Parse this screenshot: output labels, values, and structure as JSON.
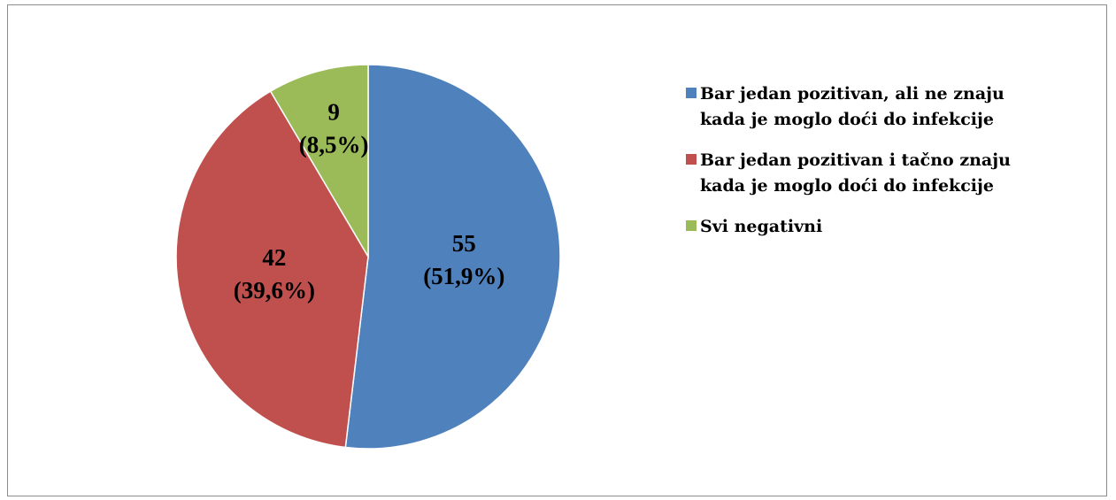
{
  "chart_data": {
    "type": "pie",
    "categories": [
      "Bar jedan pozitivan, ali ne znaju kada je moglo doći do infekcije",
      "Bar jedan pozitivan i tačno znaju kada je moglo doći do infekcije",
      "Svi negativni"
    ],
    "values": [
      55,
      42,
      9
    ],
    "value_labels": [
      [
        "55",
        "(51,9%)"
      ],
      [
        "42",
        "(39,6%)"
      ],
      [
        "9",
        "(8,5%)"
      ]
    ],
    "colors": [
      "#4f81bd",
      "#c0504d",
      "#9bbb59"
    ],
    "legend": "right"
  }
}
